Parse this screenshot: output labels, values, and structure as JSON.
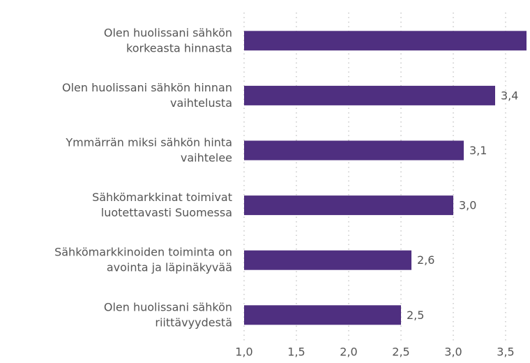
{
  "chart_data": {
    "type": "hbar",
    "categories": [
      "Olen huolissani sähkön\nkorkeasta hinnasta",
      "Olen huolissani sähkön hinnan\nvaihtelusta",
      "Ymmärrän miksi sähkön hinta\nvaihtelee",
      "Sähkömarkkinat toimivat\nluotettavasti Suomessa",
      "Sähkömarkkinoiden toiminta on\navointa ja läpinäkyvää",
      "Olen huolissani sähkön\nriittävyydestä"
    ],
    "values": [
      3.8,
      3.4,
      3.1,
      3.0,
      2.6,
      2.5
    ],
    "value_labels": [
      null,
      "3,4",
      "3,1",
      "3,0",
      "2,6",
      "2,5"
    ],
    "color": "#4f2f80",
    "xlim": [
      1.0,
      3.7
    ],
    "xticks": [
      {
        "value": 1.0,
        "label": "1,0"
      },
      {
        "value": 1.5,
        "label": "1,5"
      },
      {
        "value": 2.0,
        "label": "2,0"
      },
      {
        "value": 2.5,
        "label": "2,5"
      },
      {
        "value": 3.0,
        "label": "3,0"
      },
      {
        "value": 3.5,
        "label": "3,5"
      }
    ],
    "grid": true
  }
}
